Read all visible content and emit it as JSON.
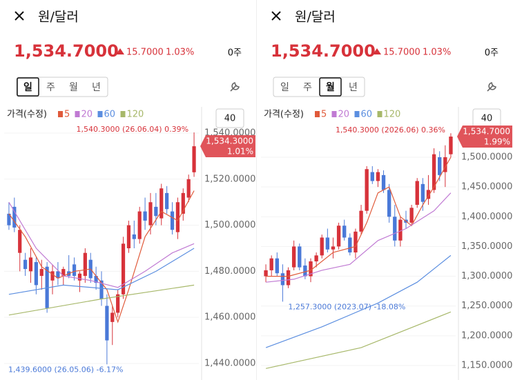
{
  "panels": [
    {
      "header": {
        "title": "원/달러",
        "price": "1,534.7000",
        "change": "15.7000",
        "change_pct": "1.03%",
        "holdings": "0주"
      },
      "periods": [
        "일",
        "주",
        "월",
        "년"
      ],
      "active_period": 0,
      "chart_data": {
        "type": "candlestick",
        "legend_title": "가격(수정)",
        "zoom": 40,
        "ylim": [
          1434.6,
          1543.9
        ],
        "yticks": [
          {
            "value": 1440,
            "label": "1,440.0000"
          },
          {
            "value": 1460,
            "label": "1,460.0000"
          },
          {
            "value": 1480,
            "label": "1,480.0000"
          },
          {
            "value": 1500,
            "label": "1,500.0000"
          },
          {
            "value": 1520,
            "label": "1,520.0000"
          },
          {
            "value": 1540,
            "label": "1,540.0000"
          }
        ],
        "candles": {
          "open": [
            1505,
            1508,
            1488,
            1485,
            1480,
            1484,
            1478,
            1482,
            1476,
            1480,
            1478,
            1480,
            1483,
            1476,
            1478,
            1485,
            1478,
            1476,
            1465,
            1458,
            1462,
            1470,
            1490,
            1496,
            1494,
            1506,
            1500,
            1508,
            1503,
            1514,
            1506,
            1497,
            1505,
            1512,
            1523
          ],
          "high": [
            1510,
            1512,
            1500,
            1488,
            1490,
            1486,
            1485,
            1484,
            1483,
            1484,
            1482,
            1487,
            1486,
            1480,
            1490,
            1488,
            1482,
            1480,
            1470,
            1465,
            1472,
            1495,
            1502,
            1502,
            1508,
            1512,
            1514,
            1514,
            1518,
            1517,
            1510,
            1512,
            1516,
            1522,
            1540.3
          ],
          "low": [
            1498,
            1497,
            1480,
            1478,
            1475,
            1470,
            1472,
            1462,
            1470,
            1474,
            1474,
            1477,
            1476,
            1471,
            1475,
            1475,
            1472,
            1465,
            1439.6,
            1448,
            1460,
            1468,
            1488,
            1490,
            1492,
            1498,
            1496,
            1500,
            1500,
            1505,
            1496,
            1494,
            1502,
            1510,
            1521
          ],
          "close": [
            1500,
            1499,
            1498,
            1481,
            1486,
            1474,
            1481,
            1464,
            1480,
            1477,
            1481,
            1478,
            1478,
            1479,
            1488,
            1477,
            1475,
            1468,
            1450,
            1462,
            1470,
            1492,
            1500,
            1494,
            1506,
            1502,
            1510,
            1504,
            1516,
            1507,
            1498,
            1510,
            1514,
            1520,
            1534.3
          ]
        },
        "series": [
          {
            "name": "5",
            "color": "#e05a3a",
            "x": [
              0,
              3,
              6,
              9,
              12,
              15,
              18,
              20,
              22,
              25,
              28,
              31,
              34
            ],
            "values": [
              1505,
              1495,
              1482,
              1477,
              1480,
              1481,
              1472,
              1458,
              1472,
              1495,
              1506,
              1502,
              1515
            ]
          },
          {
            "name": "20",
            "color": "#c07ad3",
            "x": [
              0,
              5,
              10,
              15,
              20,
              25,
              30,
              34
            ],
            "values": [
              1510,
              1490,
              1478,
              1476,
              1473,
              1480,
              1488,
              1492
            ]
          },
          {
            "name": "60",
            "color": "#5b8ee0",
            "x": [
              0,
              10,
              20,
              27,
              34
            ],
            "values": [
              1470,
              1474,
              1472,
              1480,
              1490
            ]
          },
          {
            "name": "120",
            "color": "#a7b86a",
            "x": [
              0,
              17,
              34
            ],
            "values": [
              1461,
              1468,
              1474
            ]
          }
        ],
        "max_label": "1,540.3000 (26.06.04) 0.39%",
        "min_label": "1,439.6000 (26.05.06) -6.17%",
        "current_price": "1,534.3000",
        "current_pct": "1.01%"
      }
    },
    {
      "header": {
        "title": "원/달러",
        "price": "1,534.7000",
        "change": "15.7000",
        "change_pct": "1.03%",
        "holdings": "0주"
      },
      "periods": [
        "일",
        "주",
        "월",
        "년"
      ],
      "active_period": 2,
      "chart_data": {
        "type": "candlestick",
        "legend_title": "가격(수정)",
        "zoom": 40,
        "ylim": [
          1132.6,
          1555.6
        ],
        "yticks": [
          {
            "value": 1150,
            "label": "1,150.0000"
          },
          {
            "value": 1200,
            "label": "1,200.0000"
          },
          {
            "value": 1250,
            "label": "1,250.0000"
          },
          {
            "value": 1300,
            "label": "1,300.0000"
          },
          {
            "value": 1350,
            "label": "1,350.0000"
          },
          {
            "value": 1400,
            "label": "1,400.0000"
          },
          {
            "value": 1450,
            "label": "1,450.0000"
          },
          {
            "value": 1500,
            "label": "1,500.0000"
          }
        ],
        "candles": {
          "open": [
            1300,
            1310,
            1330,
            1305,
            1285,
            1315,
            1350,
            1318,
            1300,
            1325,
            1335,
            1365,
            1345,
            1350,
            1385,
            1365,
            1340,
            1375,
            1410,
            1475,
            1460,
            1470,
            1445,
            1400,
            1360,
            1395,
            1390,
            1420,
            1455,
            1430,
            1445,
            1500,
            1475,
            1505
          ],
          "high": [
            1320,
            1335,
            1340,
            1320,
            1315,
            1360,
            1355,
            1330,
            1330,
            1340,
            1370,
            1380,
            1365,
            1390,
            1395,
            1372,
            1380,
            1420,
            1485,
            1485,
            1480,
            1478,
            1455,
            1420,
            1400,
            1410,
            1420,
            1465,
            1465,
            1470,
            1515,
            1510,
            1520,
            1540.3
          ],
          "low": [
            1290,
            1300,
            1300,
            1257.3,
            1280,
            1310,
            1310,
            1295,
            1290,
            1315,
            1330,
            1340,
            1330,
            1345,
            1360,
            1335,
            1330,
            1370,
            1405,
            1455,
            1450,
            1440,
            1390,
            1350,
            1350,
            1380,
            1385,
            1415,
            1410,
            1420,
            1440,
            1460,
            1450,
            1500
          ],
          "close": [
            1310,
            1330,
            1305,
            1285,
            1310,
            1350,
            1315,
            1300,
            1325,
            1335,
            1365,
            1345,
            1350,
            1385,
            1365,
            1340,
            1375,
            1410,
            1480,
            1460,
            1475,
            1445,
            1400,
            1360,
            1395,
            1390,
            1415,
            1460,
            1425,
            1445,
            1505,
            1470,
            1500,
            1534.7
          ]
        },
        "series": [
          {
            "name": "5",
            "color": "#e05a3a",
            "x": [
              0,
              4,
              8,
              12,
              16,
              18,
              20,
              22,
              24,
              26,
              28,
              30,
              33
            ],
            "values": [
              1300,
              1300,
              1310,
              1340,
              1350,
              1390,
              1440,
              1450,
              1400,
              1385,
              1420,
              1450,
              1500
            ]
          },
          {
            "name": "20",
            "color": "#c07ad3",
            "x": [
              0,
              5,
              10,
              15,
              20,
              25,
              30,
              33
            ],
            "values": [
              1290,
              1295,
              1310,
              1320,
              1360,
              1380,
              1410,
              1440
            ]
          },
          {
            "name": "60",
            "color": "#5b8ee0",
            "x": [
              0,
              10,
              20,
              27,
              33
            ],
            "values": [
              1180,
              1215,
              1255,
              1290,
              1335
            ]
          },
          {
            "name": "120",
            "color": "#a7b86a",
            "x": [
              0,
              17,
              33
            ],
            "values": [
              1145,
              1180,
              1240
            ]
          }
        ],
        "max_label": "1,540.3000 (2026.06) 0.36%",
        "min_label": "1,257.3000 (2023.07) -18.08%",
        "current_price": "1,534.7000",
        "current_pct": "1.99%"
      }
    }
  ]
}
